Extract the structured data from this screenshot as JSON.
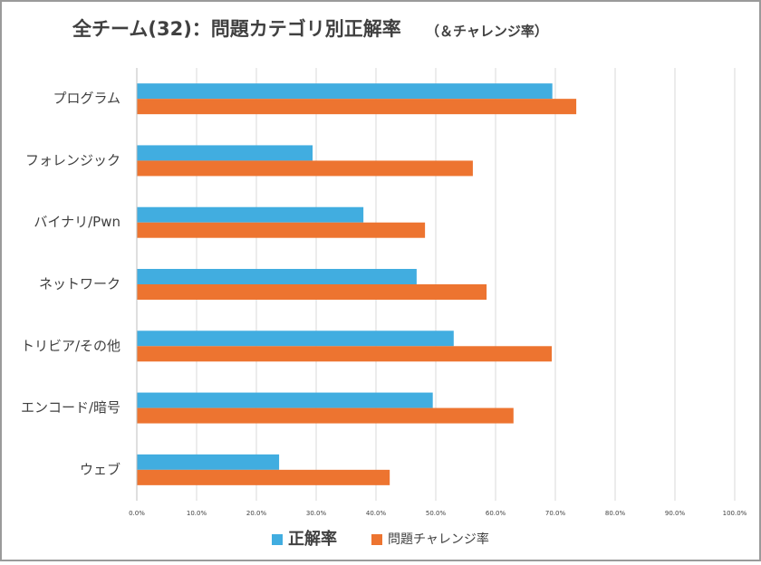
{
  "chart_data": {
    "type": "barh",
    "title": "全チーム(32)：問題カテゴリ別正解率",
    "subtitle": "（＆チャレンジ率）",
    "categories": [
      "プログラム",
      "フォレンジック",
      "バイナリ/Pwn",
      "ネットワーク",
      "トリビア/その他",
      "エンコード/暗号",
      "ウェブ"
    ],
    "series": [
      {
        "name": "正解率",
        "color": "#41ade0",
        "values": [
          69.5,
          29.4,
          37.9,
          46.8,
          53.0,
          49.5,
          23.8
        ]
      },
      {
        "name": "問題チャレンジ率",
        "color": "#ed7430",
        "values": [
          73.5,
          56.2,
          48.2,
          58.5,
          69.4,
          63.0,
          42.3
        ]
      }
    ],
    "xlim": [
      0,
      100
    ],
    "xticks": [
      {
        "value": 0,
        "label": "0.0%"
      },
      {
        "value": 10,
        "label": "10.0%"
      },
      {
        "value": 20,
        "label": "20.0%"
      },
      {
        "value": 30,
        "label": "30.0%"
      },
      {
        "value": 40,
        "label": "40.0%"
      },
      {
        "value": 50,
        "label": "50.0%"
      },
      {
        "value": 60,
        "label": "60.0%"
      },
      {
        "value": 70,
        "label": "70.0%"
      },
      {
        "value": 80,
        "label": "80.0%"
      },
      {
        "value": 90,
        "label": "90.0%"
      },
      {
        "value": 100,
        "label": "100.0%"
      }
    ],
    "grid": true,
    "legend": "bottom"
  }
}
